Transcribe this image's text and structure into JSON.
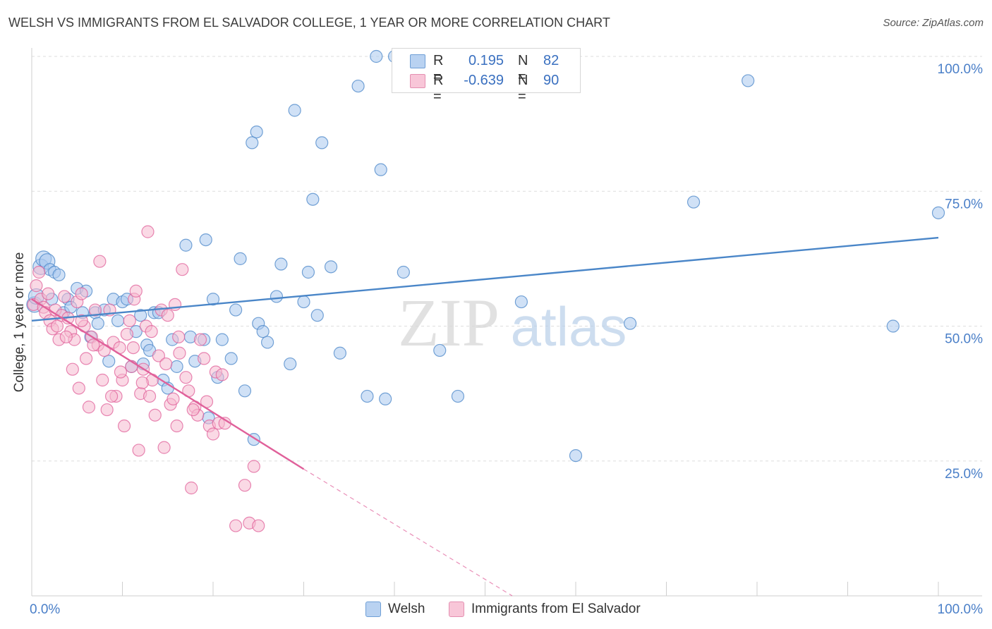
{
  "chart_data": {
    "type": "scatter",
    "title": "WELSH VS IMMIGRANTS FROM EL SALVADOR COLLEGE, 1 YEAR OR MORE CORRELATION CHART",
    "source": "Source: ZipAtlas.com",
    "xlabel": "",
    "ylabel": "College, 1 year or more",
    "x_tick_labels": [
      "0.0%",
      "100.0%"
    ],
    "y_tick_labels": [
      "25.0%",
      "50.0%",
      "75.0%",
      "100.0%"
    ],
    "y_ticks": [
      25,
      50,
      75,
      100
    ],
    "xlim": [
      0,
      100
    ],
    "ylim": [
      0,
      100
    ],
    "grid": true,
    "watermark": "ZIPatlas",
    "legend": {
      "r_label": "R =",
      "n_label": "N =",
      "entries": [
        {
          "r": "0.195",
          "n": "82"
        },
        {
          "r": "-0.639",
          "n": "90"
        }
      ]
    },
    "series": [
      {
        "name": "Welsh",
        "color": "#4a86c8",
        "fill": "#a9c8ee",
        "trend": {
          "x0": 0,
          "y0": 51,
          "x1": 100,
          "y1": 66.4
        },
        "points": [
          [
            0.3,
            54
          ],
          [
            0.5,
            55.5
          ],
          [
            1,
            61
          ],
          [
            1.3,
            62.5
          ],
          [
            1.7,
            62
          ],
          [
            2,
            60.5
          ],
          [
            2.2,
            55
          ],
          [
            2.5,
            60
          ],
          [
            3,
            59.5
          ],
          [
            3.5,
            52.5
          ],
          [
            4,
            55
          ],
          [
            4.3,
            53.5
          ],
          [
            5,
            57
          ],
          [
            5.6,
            52.5
          ],
          [
            6,
            56.5
          ],
          [
            6.5,
            48
          ],
          [
            7,
            52.5
          ],
          [
            7.3,
            50.5
          ],
          [
            8,
            53
          ],
          [
            8.5,
            43.5
          ],
          [
            9,
            55
          ],
          [
            9.5,
            51
          ],
          [
            10,
            54.5
          ],
          [
            10.5,
            55
          ],
          [
            11,
            42.5
          ],
          [
            11.5,
            49
          ],
          [
            12,
            52
          ],
          [
            12.3,
            43
          ],
          [
            12.7,
            46.5
          ],
          [
            13,
            45.5
          ],
          [
            13.5,
            52.5
          ],
          [
            14,
            52.5
          ],
          [
            14.5,
            40
          ],
          [
            15,
            38.5
          ],
          [
            15.5,
            47.5
          ],
          [
            16,
            42.5
          ],
          [
            17,
            65
          ],
          [
            17.5,
            48
          ],
          [
            18,
            43.5
          ],
          [
            19,
            47.5
          ],
          [
            19.2,
            66
          ],
          [
            19.5,
            33
          ],
          [
            20,
            55
          ],
          [
            20.5,
            40.5
          ],
          [
            21,
            47.5
          ],
          [
            22,
            44
          ],
          [
            22.5,
            53
          ],
          [
            23,
            62.5
          ],
          [
            23.5,
            38
          ],
          [
            24.5,
            29
          ],
          [
            24.3,
            84
          ],
          [
            24.8,
            86
          ],
          [
            25,
            50.5
          ],
          [
            25.5,
            49
          ],
          [
            26,
            47
          ],
          [
            27,
            55.5
          ],
          [
            27.5,
            61.5
          ],
          [
            28.5,
            43
          ],
          [
            29,
            90
          ],
          [
            30,
            54.5
          ],
          [
            30.5,
            60
          ],
          [
            31,
            73.5
          ],
          [
            31.5,
            52
          ],
          [
            32,
            84
          ],
          [
            33,
            61
          ],
          [
            34,
            45
          ],
          [
            36,
            94.5
          ],
          [
            37,
            37
          ],
          [
            38,
            100
          ],
          [
            38.5,
            79
          ],
          [
            39,
            36.5
          ],
          [
            40,
            100
          ],
          [
            41,
            60
          ],
          [
            45,
            45.5
          ],
          [
            47,
            37
          ],
          [
            54,
            54.5
          ],
          [
            60,
            26
          ],
          [
            66,
            50.5
          ],
          [
            73,
            73
          ],
          [
            79,
            95.5
          ],
          [
            95,
            50
          ],
          [
            100,
            71
          ]
        ]
      },
      {
        "name": "Immigrants from El Salvador",
        "color": "#e0609a",
        "fill": "#f5b9cf",
        "trend": {
          "x0": 0,
          "y0": 55,
          "x1": 30,
          "y1": 23.5
        },
        "trend_dashed": {
          "x0": 30,
          "y0": 23.5,
          "x1": 53,
          "y1": 0
        },
        "points": [
          [
            0.2,
            54
          ],
          [
            0.5,
            57.5
          ],
          [
            0.8,
            60
          ],
          [
            1,
            55
          ],
          [
            1.3,
            53.5
          ],
          [
            1.5,
            52.5
          ],
          [
            2,
            51
          ],
          [
            2.3,
            49.5
          ],
          [
            2.6,
            53
          ],
          [
            2.8,
            50
          ],
          [
            3,
            47.5
          ],
          [
            3.3,
            52
          ],
          [
            3.6,
            55.5
          ],
          [
            4,
            51.5
          ],
          [
            4.3,
            49
          ],
          [
            4.7,
            47.5
          ],
          [
            5,
            54.5
          ],
          [
            5.2,
            38.5
          ],
          [
            5.5,
            56
          ],
          [
            5.8,
            50
          ],
          [
            6,
            44
          ],
          [
            6.3,
            35
          ],
          [
            6.6,
            48
          ],
          [
            7,
            53
          ],
          [
            7.3,
            46.5
          ],
          [
            7.5,
            62
          ],
          [
            7.8,
            40
          ],
          [
            8,
            45.5
          ],
          [
            8.3,
            34.5
          ],
          [
            8.6,
            53
          ],
          [
            9,
            47
          ],
          [
            9.3,
            37
          ],
          [
            9.7,
            46
          ],
          [
            10,
            40
          ],
          [
            10.2,
            31.5
          ],
          [
            10.5,
            48.5
          ],
          [
            11,
            42.5
          ],
          [
            11.3,
            55
          ],
          [
            11.5,
            56.5
          ],
          [
            11.8,
            27
          ],
          [
            12,
            37.5
          ],
          [
            12.3,
            42
          ],
          [
            12.6,
            50
          ],
          [
            12.8,
            67.5
          ],
          [
            13,
            37
          ],
          [
            13.3,
            40
          ],
          [
            13.6,
            33.5
          ],
          [
            14,
            44.5
          ],
          [
            14.3,
            53
          ],
          [
            14.6,
            27.5
          ],
          [
            15,
            52
          ],
          [
            15.3,
            35.5
          ],
          [
            15.6,
            36.5
          ],
          [
            16,
            31.5
          ],
          [
            16.3,
            45
          ],
          [
            16.6,
            60.5
          ],
          [
            17,
            40.5
          ],
          [
            17.3,
            38
          ],
          [
            17.6,
            20
          ],
          [
            18,
            35
          ],
          [
            18.3,
            33.5
          ],
          [
            18.6,
            47.5
          ],
          [
            19,
            44
          ],
          [
            19.3,
            36
          ],
          [
            19.6,
            31.5
          ],
          [
            20,
            30
          ],
          [
            20.3,
            41.5
          ],
          [
            20.6,
            32
          ],
          [
            21,
            41
          ],
          [
            21.3,
            32
          ],
          [
            22.5,
            13
          ],
          [
            23.5,
            20.5
          ],
          [
            24,
            13.5
          ],
          [
            24.5,
            24
          ],
          [
            25,
            13
          ],
          [
            16.2,
            48
          ],
          [
            11.2,
            46
          ],
          [
            13.2,
            49
          ],
          [
            15.8,
            54
          ],
          [
            9.8,
            41.5
          ],
          [
            6.8,
            46.5
          ],
          [
            8.8,
            37
          ],
          [
            10.8,
            51
          ],
          [
            12.2,
            39.5
          ],
          [
            14.8,
            43
          ],
          [
            17.8,
            34.5
          ],
          [
            3.8,
            48
          ],
          [
            5.5,
            51
          ],
          [
            1.8,
            56
          ],
          [
            4.5,
            42
          ]
        ]
      }
    ]
  }
}
